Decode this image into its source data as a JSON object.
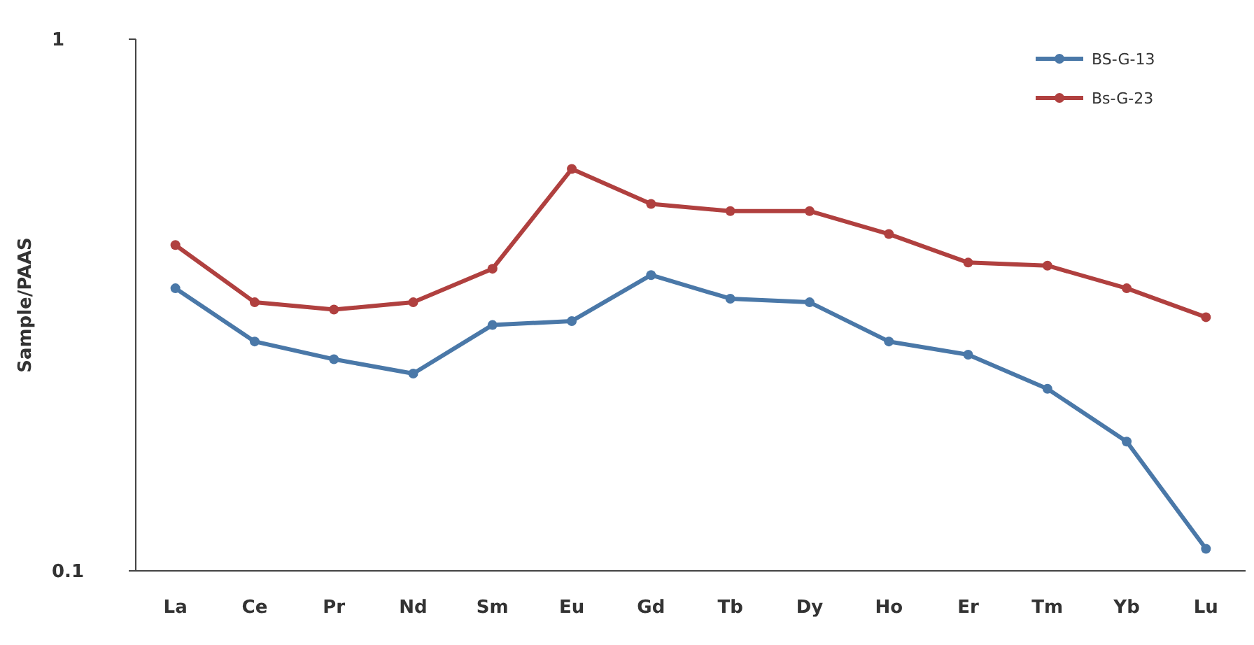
{
  "chart_data": {
    "type": "line",
    "ylabel": "Sample/PAAS",
    "categories": [
      "La",
      "Ce",
      "Pr",
      "Nd",
      "Sm",
      "Eu",
      "Gd",
      "Tb",
      "Dy",
      "Ho",
      "Er",
      "Tm",
      "Yb",
      "Lu"
    ],
    "series": [
      {
        "name": "BS-G-13",
        "color": "#4a78a8",
        "values": [
          0.34,
          0.27,
          0.25,
          0.235,
          0.29,
          0.295,
          0.36,
          0.325,
          0.32,
          0.27,
          0.255,
          0.22,
          0.175,
          0.11
        ]
      },
      {
        "name": "Bs-G-23",
        "color": "#b0403f",
        "values": [
          0.41,
          0.32,
          0.31,
          0.32,
          0.37,
          0.57,
          0.49,
          0.475,
          0.475,
          0.43,
          0.38,
          0.375,
          0.34,
          0.3
        ]
      }
    ],
    "log": "y",
    "ylim": [
      0.1,
      1
    ],
    "yticks": [
      0.1,
      1
    ],
    "grid": false,
    "legend": "top right",
    "marker": "circle",
    "line_style": "solid"
  }
}
